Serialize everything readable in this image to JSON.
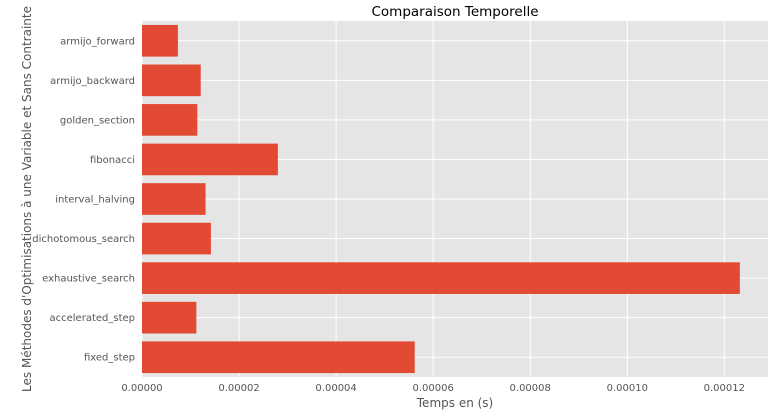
{
  "chart_data": {
    "type": "bar",
    "orientation": "horizontal",
    "title": "Comparaison Temporelle",
    "xlabel": "Temps en (s)",
    "ylabel": "Les Méthodes d'Optimisations à une Variable et Sans Contrainte",
    "categories": [
      "armijo_forward",
      "armijo_backward",
      "golden_section",
      "fibonacci",
      "interval_halving",
      "dichotomous_search",
      "exhaustive_search",
      "accelerated_step",
      "fixed_step"
    ],
    "values": [
      7.4e-06,
      1.21e-05,
      1.14e-05,
      2.8e-05,
      1.31e-05,
      1.42e-05,
      0.0001232,
      1.12e-05,
      5.62e-05
    ],
    "xlim": [
      0,
      0.000129
    ],
    "xticks": [
      0,
      2e-05,
      4e-05,
      6e-05,
      8e-05,
      0.0001,
      0.00012
    ],
    "xtick_labels": [
      "0.00000",
      "0.00002",
      "0.00004",
      "0.00006",
      "0.00008",
      "0.00010",
      "0.00012"
    ],
    "grid": true,
    "colors": {
      "bar": "#e24a33",
      "panel": "#e5e5e5",
      "grid": "#ffffff",
      "text": "#555555",
      "title": "#000000"
    }
  }
}
